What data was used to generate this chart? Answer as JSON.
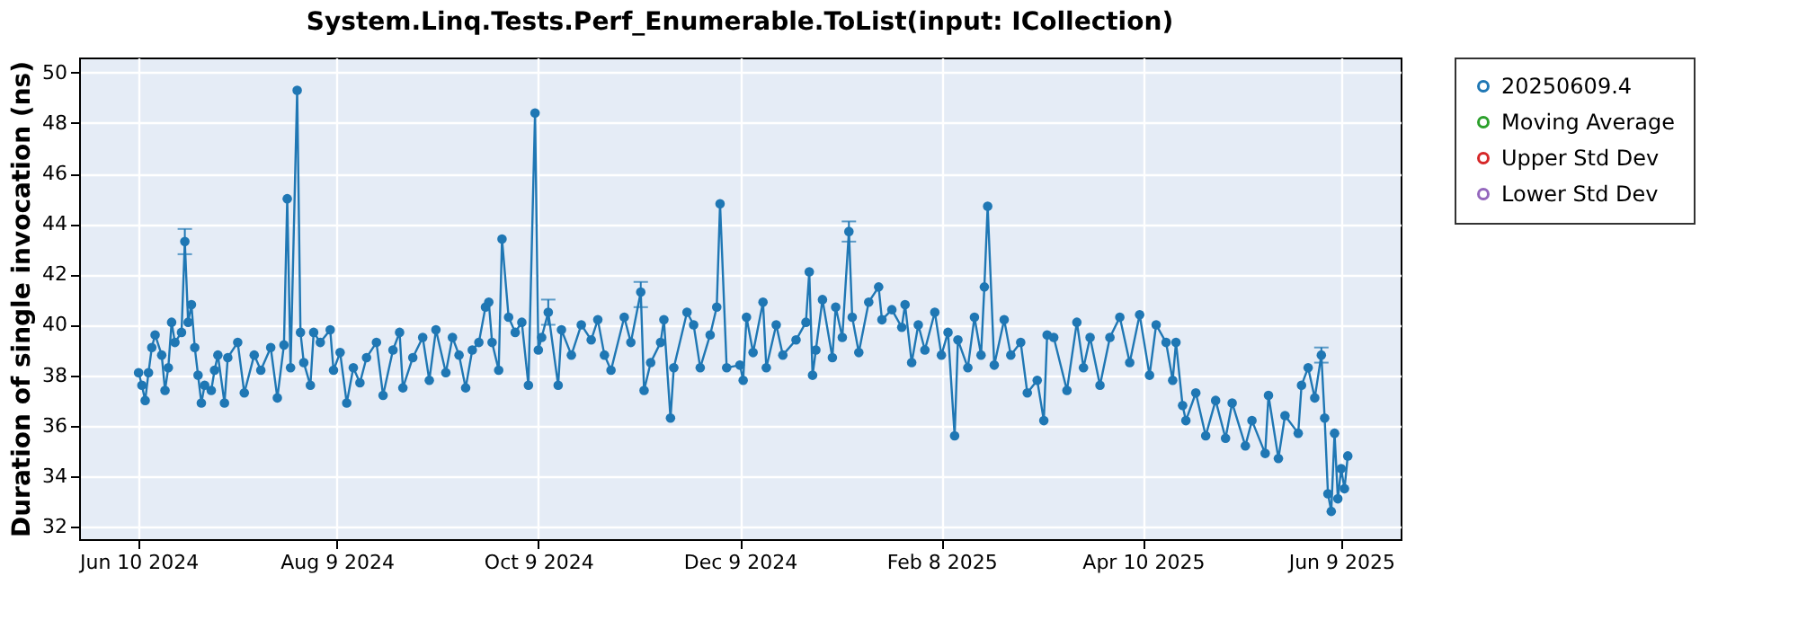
{
  "chart_data": {
    "type": "line",
    "title": "System.Linq.Tests.Perf_Enumerable.ToList(input: ICollection)",
    "ylabel": "Duration of single invocation (ns)",
    "xlim": [
      "2024-05-23",
      "2025-06-27"
    ],
    "xticks": [
      {
        "value": "2024-06-10",
        "label": "Jun 10 2024"
      },
      {
        "value": "2024-08-09",
        "label": "Aug 9 2024"
      },
      {
        "value": "2024-10-09",
        "label": "Oct 9 2024"
      },
      {
        "value": "2024-12-09",
        "label": "Dec 9 2024"
      },
      {
        "value": "2025-02-08",
        "label": "Feb 8 2025"
      },
      {
        "value": "2025-04-10",
        "label": "Apr 10 2025"
      },
      {
        "value": "2025-06-09",
        "label": "Jun 9 2025"
      }
    ],
    "ylim": [
      31.5,
      50.6
    ],
    "yticks": [
      32,
      34,
      36,
      38,
      40,
      42,
      44,
      46,
      48,
      50
    ],
    "grid": true,
    "legend": "right",
    "marker": "circle",
    "line_style": "solid",
    "series": [
      {
        "name": "20250609.4",
        "color": "#1f77b4",
        "x": [
          "2024-06-10",
          "2024-06-11",
          "2024-06-12",
          "2024-06-13",
          "2024-06-14",
          "2024-06-15",
          "2024-06-17",
          "2024-06-18",
          "2024-06-19",
          "2024-06-20",
          "2024-06-21",
          "2024-06-23",
          "2024-06-24",
          "2024-06-25",
          "2024-06-26",
          "2024-06-27",
          "2024-06-28",
          "2024-06-29",
          "2024-06-30",
          "2024-07-02",
          "2024-07-03",
          "2024-07-04",
          "2024-07-06",
          "2024-07-07",
          "2024-07-10",
          "2024-07-12",
          "2024-07-15",
          "2024-07-17",
          "2024-07-20",
          "2024-07-22",
          "2024-07-24",
          "2024-07-25",
          "2024-07-26",
          "2024-07-28",
          "2024-07-29",
          "2024-07-30",
          "2024-08-01",
          "2024-08-02",
          "2024-08-04",
          "2024-08-07",
          "2024-08-08",
          "2024-08-10",
          "2024-08-12",
          "2024-08-14",
          "2024-08-16",
          "2024-08-18",
          "2024-08-21",
          "2024-08-23",
          "2024-08-26",
          "2024-08-28",
          "2024-08-29",
          "2024-09-01",
          "2024-09-04",
          "2024-09-06",
          "2024-09-08",
          "2024-09-11",
          "2024-09-13",
          "2024-09-15",
          "2024-09-17",
          "2024-09-19",
          "2024-09-21",
          "2024-09-23",
          "2024-09-24",
          "2024-09-25",
          "2024-09-27",
          "2024-09-28",
          "2024-09-30",
          "2024-10-02",
          "2024-10-04",
          "2024-10-06",
          "2024-10-08",
          "2024-10-09",
          "2024-10-10",
          "2024-10-12",
          "2024-10-15",
          "2024-10-16",
          "2024-10-19",
          "2024-10-22",
          "2024-10-25",
          "2024-10-27",
          "2024-10-29",
          "2024-10-31",
          "2024-11-04",
          "2024-11-06",
          "2024-11-09",
          "2024-11-10",
          "2024-11-12",
          "2024-11-15",
          "2024-11-16",
          "2024-11-18",
          "2024-11-19",
          "2024-11-23",
          "2024-11-25",
          "2024-11-27",
          "2024-11-30",
          "2024-12-02",
          "2024-12-03",
          "2024-12-05",
          "2024-12-09",
          "2024-12-10",
          "2024-12-11",
          "2024-12-13",
          "2024-12-16",
          "2024-12-17",
          "2024-12-20",
          "2024-12-22",
          "2024-12-26",
          "2024-12-29",
          "2024-12-30",
          "2024-12-31",
          "2025-01-01",
          "2025-01-03",
          "2025-01-06",
          "2025-01-07",
          "2025-01-09",
          "2025-01-11",
          "2025-01-12",
          "2025-01-14",
          "2025-01-17",
          "2025-01-20",
          "2025-01-21",
          "2025-01-24",
          "2025-01-27",
          "2025-01-28",
          "2025-01-30",
          "2025-02-01",
          "2025-02-03",
          "2025-02-06",
          "2025-02-08",
          "2025-02-10",
          "2025-02-12",
          "2025-02-13",
          "2025-02-16",
          "2025-02-18",
          "2025-02-20",
          "2025-02-21",
          "2025-02-22",
          "2025-02-24",
          "2025-02-27",
          "2025-03-01",
          "2025-03-04",
          "2025-03-06",
          "2025-03-09",
          "2025-03-11",
          "2025-03-12",
          "2025-03-14",
          "2025-03-18",
          "2025-03-21",
          "2025-03-23",
          "2025-03-25",
          "2025-03-28",
          "2025-03-31",
          "2025-04-03",
          "2025-04-06",
          "2025-04-09",
          "2025-04-12",
          "2025-04-14",
          "2025-04-17",
          "2025-04-19",
          "2025-04-20",
          "2025-04-22",
          "2025-04-23",
          "2025-04-26",
          "2025-04-29",
          "2025-05-02",
          "2025-05-05",
          "2025-05-07",
          "2025-05-11",
          "2025-05-13",
          "2025-05-17",
          "2025-05-18",
          "2025-05-21",
          "2025-05-23",
          "2025-05-27",
          "2025-05-28",
          "2025-05-30",
          "2025-06-01",
          "2025-06-03",
          "2025-06-04",
          "2025-06-05",
          "2025-06-06",
          "2025-06-07",
          "2025-06-08",
          "2025-06-09",
          "2025-06-10",
          "2025-06-11"
        ],
        "values": [
          38.1,
          37.6,
          37.0,
          38.1,
          39.1,
          39.6,
          38.8,
          37.4,
          38.3,
          40.1,
          39.3,
          39.7,
          43.3,
          40.1,
          40.8,
          39.1,
          38.0,
          36.9,
          37.6,
          37.4,
          38.2,
          38.8,
          36.9,
          38.7,
          39.3,
          37.3,
          38.8,
          38.2,
          39.1,
          37.1,
          39.2,
          45.0,
          38.3,
          49.3,
          39.7,
          38.5,
          37.6,
          39.7,
          39.3,
          39.8,
          38.2,
          38.9,
          36.9,
          38.3,
          37.7,
          38.7,
          39.3,
          37.2,
          39.0,
          39.7,
          37.5,
          38.7,
          39.5,
          37.8,
          39.8,
          38.1,
          39.5,
          38.8,
          37.5,
          39.0,
          39.3,
          40.7,
          40.9,
          39.3,
          38.2,
          43.4,
          40.3,
          39.7,
          40.1,
          37.6,
          48.4,
          39.0,
          39.5,
          40.5,
          37.6,
          39.8,
          38.8,
          40.0,
          39.4,
          40.2,
          38.8,
          38.2,
          40.3,
          39.3,
          41.3,
          37.4,
          38.5,
          39.3,
          40.2,
          36.3,
          38.3,
          40.5,
          40.0,
          38.3,
          39.6,
          40.7,
          44.8,
          38.3,
          38.4,
          37.8,
          40.3,
          38.9,
          40.9,
          38.3,
          40.0,
          38.8,
          39.4,
          40.1,
          42.1,
          38.0,
          39.0,
          41.0,
          38.7,
          40.7,
          39.5,
          43.7,
          40.3,
          38.9,
          40.9,
          41.5,
          40.2,
          40.6,
          39.9,
          40.8,
          38.5,
          40.0,
          39.0,
          40.5,
          38.8,
          39.7,
          35.6,
          39.4,
          38.3,
          40.3,
          38.8,
          41.5,
          44.7,
          38.4,
          40.2,
          38.8,
          39.3,
          37.3,
          37.8,
          36.2,
          39.6,
          39.5,
          37.4,
          40.1,
          38.3,
          39.5,
          37.6,
          39.5,
          40.3,
          38.5,
          40.4,
          38.0,
          40.0,
          39.3,
          37.8,
          39.3,
          36.8,
          36.2,
          37.3,
          35.6,
          37.0,
          35.5,
          36.9,
          35.2,
          36.2,
          34.9,
          37.2,
          34.7,
          36.4,
          35.7,
          37.6,
          38.3,
          37.1,
          38.8,
          36.3,
          33.3,
          32.6,
          35.7,
          33.1,
          34.3,
          33.5,
          34.8
        ],
        "errors": [
          null,
          null,
          null,
          null,
          null,
          null,
          null,
          null,
          null,
          null,
          null,
          null,
          [
            42.8,
            43.8
          ],
          null,
          null,
          null,
          null,
          null,
          null,
          null,
          null,
          null,
          null,
          null,
          null,
          null,
          null,
          null,
          null,
          null,
          null,
          null,
          null,
          null,
          null,
          null,
          null,
          null,
          null,
          null,
          null,
          null,
          null,
          null,
          null,
          null,
          null,
          null,
          null,
          null,
          null,
          null,
          null,
          null,
          null,
          null,
          null,
          null,
          null,
          null,
          null,
          null,
          null,
          null,
          null,
          null,
          null,
          null,
          null,
          null,
          null,
          null,
          null,
          [
            40.0,
            41.0
          ],
          null,
          null,
          null,
          null,
          null,
          null,
          null,
          null,
          null,
          null,
          [
            40.7,
            41.7
          ],
          null,
          null,
          null,
          null,
          null,
          null,
          null,
          null,
          null,
          null,
          null,
          null,
          null,
          null,
          null,
          null,
          null,
          null,
          null,
          null,
          null,
          null,
          null,
          null,
          null,
          null,
          null,
          null,
          null,
          null,
          [
            43.3,
            44.1
          ],
          null,
          null,
          null,
          null,
          null,
          null,
          null,
          null,
          null,
          null,
          null,
          null,
          null,
          null,
          null,
          null,
          null,
          null,
          null,
          null,
          null,
          null,
          null,
          null,
          null,
          null,
          null,
          null,
          null,
          null,
          null,
          null,
          null,
          null,
          null,
          null,
          null,
          null,
          null,
          null,
          null,
          null,
          null,
          null,
          null,
          null,
          null,
          null,
          null,
          null,
          null,
          null,
          null,
          null,
          null,
          null,
          null,
          null,
          null,
          null,
          null,
          [
            38.5,
            39.1
          ],
          null,
          null,
          null,
          null,
          null,
          null,
          null,
          null
        ]
      },
      {
        "name": "Moving Average",
        "color": "#2ca02c"
      },
      {
        "name": "Upper Std Dev",
        "color": "#d62728"
      },
      {
        "name": "Lower Std Dev",
        "color": "#9467bd"
      }
    ]
  }
}
